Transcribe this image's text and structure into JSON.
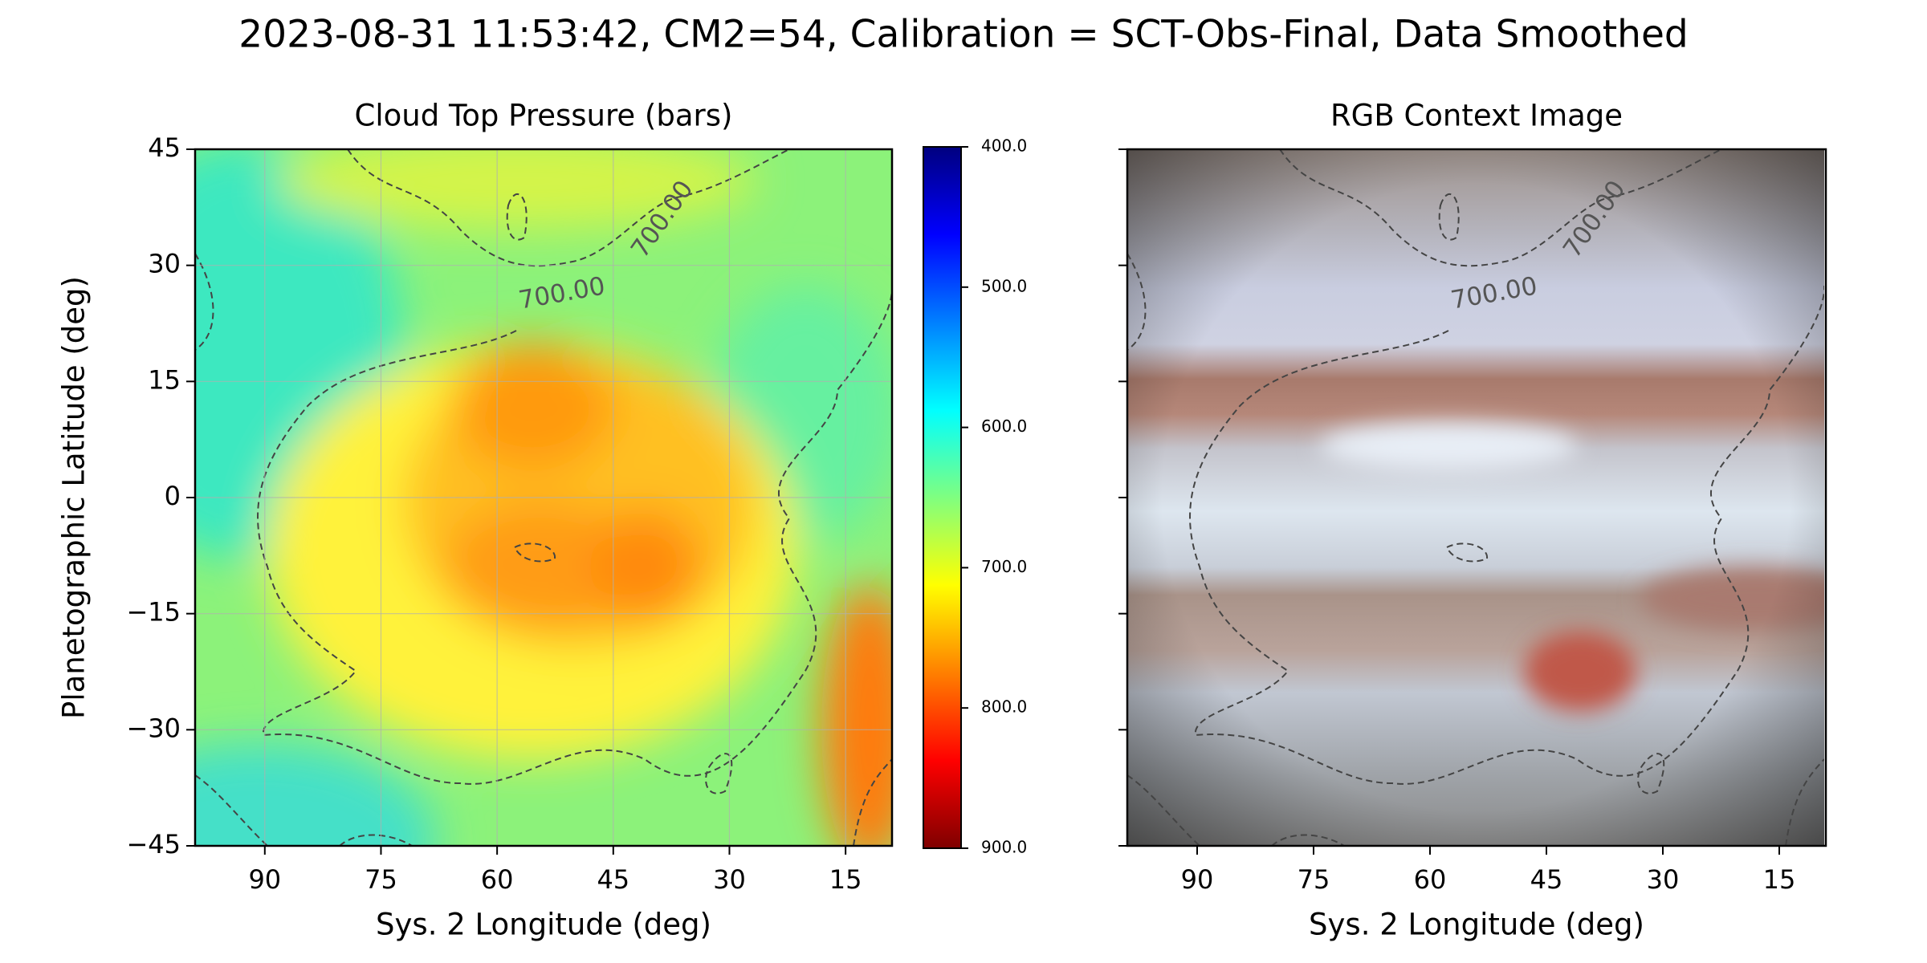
{
  "title": "2023-08-31 11:53:42, CM2=54, Calibration = SCT-Obs-Final, Data Smoothed",
  "chart_data": [
    {
      "type": "heatmap",
      "title": "Cloud Top Pressure (bars)",
      "xlabel": "Sys. 2 Longitude (deg)",
      "ylabel": "Planetographic Latitude (deg)",
      "xlim": [
        99,
        9
      ],
      "xticks": [
        90,
        75,
        60,
        45,
        30,
        15
      ],
      "ylim": [
        -45,
        45
      ],
      "yticks": [
        {
          "value": -45,
          "label": "−45"
        },
        {
          "value": -30,
          "label": "−30"
        },
        {
          "value": -15,
          "label": "−15"
        },
        0,
        15,
        30,
        45
      ],
      "grid": true,
      "colorbar": {
        "lim": [
          900,
          400
        ],
        "ticks": [
          {
            "value": 400,
            "label": "400.0"
          },
          {
            "value": 500,
            "label": "500.0"
          },
          {
            "value": 600,
            "label": "600.0"
          },
          {
            "value": 700,
            "label": "700.0"
          },
          {
            "value": 800,
            "label": "800.0"
          },
          {
            "value": 900,
            "label": "900.0"
          }
        ]
      },
      "annotations": [
        "700.00",
        "700.00"
      ]
    },
    {
      "type": "image",
      "title": "RGB Context Image",
      "xlabel": "Sys. 2 Longitude (deg)",
      "xlim": [
        99,
        9
      ],
      "xticks": [
        90,
        75,
        60,
        45,
        30,
        15
      ],
      "ylim": [
        -45,
        45
      ],
      "yticks": [
        -45,
        -30,
        -15,
        0,
        15,
        30,
        45
      ],
      "grid": false,
      "annotations": [
        "700.00",
        "700.00"
      ]
    }
  ]
}
